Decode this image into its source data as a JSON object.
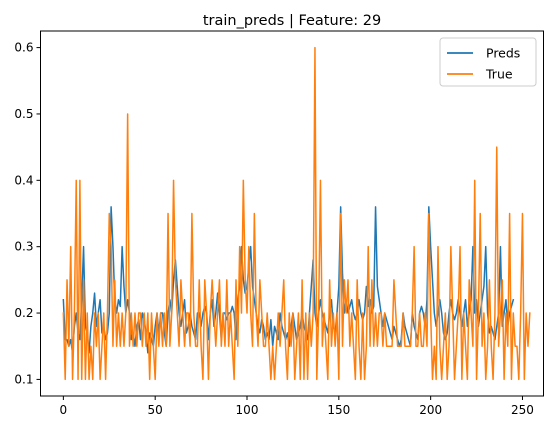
{
  "chart_data": {
    "type": "line",
    "title": "train_preds | Feature: 29",
    "xlabel": "",
    "ylabel": "",
    "xlim": [
      -12.45,
      261.45
    ],
    "ylim": [
      0.075,
      0.625
    ],
    "xticks": [
      0,
      50,
      100,
      150,
      200,
      250
    ],
    "yticks": [
      0.1,
      0.2,
      0.3,
      0.4,
      0.5,
      0.6
    ],
    "ytick_labels": [
      "0.1",
      "0.2",
      "0.3",
      "0.4",
      "0.5",
      "0.6"
    ],
    "grid": false,
    "legend": {
      "placement": "top-right"
    },
    "x_count": 250,
    "series": [
      {
        "name": "Preds",
        "color": "#1f77b4",
        "values": [
          0.22,
          0.16,
          0.16,
          0.15,
          0.16,
          0.14,
          0.18,
          0.2,
          0.17,
          0.16,
          0.22,
          0.3,
          0.18,
          0.17,
          0.14,
          0.18,
          0.2,
          0.23,
          0.18,
          0.2,
          0.22,
          0.17,
          0.18,
          0.16,
          0.17,
          0.2,
          0.36,
          0.3,
          0.22,
          0.2,
          0.22,
          0.21,
          0.3,
          0.24,
          0.2,
          0.22,
          0.2,
          0.16,
          0.17,
          0.15,
          0.18,
          0.19,
          0.16,
          0.2,
          0.19,
          0.17,
          0.14,
          0.17,
          0.16,
          0.15,
          0.18,
          0.2,
          0.17,
          0.2,
          0.2,
          0.17,
          0.15,
          0.2,
          0.22,
          0.2,
          0.25,
          0.28,
          0.24,
          0.2,
          0.18,
          0.2,
          0.22,
          0.17,
          0.18,
          0.2,
          0.18,
          0.17,
          0.16,
          0.2,
          0.2,
          0.18,
          0.2,
          0.21,
          0.2,
          0.16,
          0.2,
          0.22,
          0.18,
          0.2,
          0.23,
          0.2,
          0.16,
          0.2,
          0.2,
          0.19,
          0.2,
          0.2,
          0.21,
          0.2,
          0.16,
          0.22,
          0.24,
          0.3,
          0.25,
          0.23,
          0.24,
          0.27,
          0.3,
          0.24,
          0.22,
          0.2,
          0.18,
          0.17,
          0.19,
          0.18,
          0.16,
          0.17,
          0.16,
          0.19,
          0.15,
          0.18,
          0.17,
          0.16,
          0.2,
          0.18,
          0.17,
          0.16,
          0.17,
          0.15,
          0.18,
          0.2,
          0.18,
          0.16,
          0.17,
          0.18,
          0.2,
          0.18,
          0.17,
          0.16,
          0.2,
          0.24,
          0.28,
          0.2,
          0.18,
          0.2,
          0.22,
          0.2,
          0.19,
          0.18,
          0.17,
          0.2,
          0.22,
          0.18,
          0.17,
          0.2,
          0.24,
          0.36,
          0.26,
          0.2,
          0.22,
          0.2,
          0.21,
          0.22,
          0.2,
          0.19,
          0.2,
          0.22,
          0.2,
          0.19,
          0.2,
          0.24,
          0.21,
          0.22,
          0.2,
          0.21,
          0.36,
          0.24,
          0.22,
          0.2,
          0.18,
          0.2,
          0.19,
          0.18,
          0.17,
          0.16,
          0.18,
          0.17,
          0.16,
          0.15,
          0.16,
          0.2,
          0.18,
          0.17,
          0.16,
          0.15,
          0.2,
          0.18,
          0.17,
          0.16,
          0.2,
          0.21,
          0.2,
          0.18,
          0.22,
          0.36,
          0.3,
          0.25,
          0.2,
          0.18,
          0.2,
          0.22,
          0.2,
          0.17,
          0.16,
          0.17,
          0.2,
          0.22,
          0.2,
          0.19,
          0.2,
          0.22,
          0.2,
          0.18,
          0.2,
          0.22,
          0.18,
          0.2,
          0.22,
          0.3,
          0.2,
          0.22,
          0.18,
          0.2,
          0.22,
          0.24,
          0.3,
          0.2,
          0.17,
          0.18,
          0.17,
          0.16,
          0.18,
          0.2,
          0.3,
          0.18,
          0.2,
          0.22,
          0.18,
          0.2,
          0.21,
          0.22
        ]
      },
      {
        "name": "True",
        "color": "#ff7f0e",
        "values": [
          0.2,
          0.1,
          0.25,
          0.15,
          0.3,
          0.1,
          0.2,
          0.4,
          0.1,
          0.4,
          0.1,
          0.25,
          0.1,
          0.2,
          0.1,
          0.15,
          0.1,
          0.2,
          0.15,
          0.2,
          0.1,
          0.15,
          0.2,
          0.1,
          0.2,
          0.35,
          0.3,
          0.15,
          0.25,
          0.15,
          0.2,
          0.15,
          0.2,
          0.15,
          0.2,
          0.5,
          0.15,
          0.2,
          0.15,
          0.2,
          0.15,
          0.2,
          0.2,
          0.15,
          0.2,
          0.15,
          0.2,
          0.1,
          0.2,
          0.15,
          0.1,
          0.2,
          0.15,
          0.2,
          0.15,
          0.2,
          0.15,
          0.35,
          0.15,
          0.2,
          0.4,
          0.25,
          0.2,
          0.15,
          0.25,
          0.2,
          0.15,
          0.2,
          0.2,
          0.15,
          0.35,
          0.2,
          0.15,
          0.15,
          0.25,
          0.15,
          0.1,
          0.25,
          0.2,
          0.1,
          0.2,
          0.25,
          0.2,
          0.15,
          0.2,
          0.25,
          0.15,
          0.2,
          0.15,
          0.25,
          0.15,
          0.2,
          0.15,
          0.1,
          0.25,
          0.15,
          0.3,
          0.2,
          0.4,
          0.25,
          0.2,
          0.3,
          0.2,
          0.15,
          0.35,
          0.2,
          0.15,
          0.25,
          0.2,
          0.15,
          0.15,
          0.2,
          0.15,
          0.1,
          0.15,
          0.1,
          0.15,
          0.2,
          0.15,
          0.2,
          0.25,
          0.15,
          0.1,
          0.2,
          0.15,
          0.2,
          0.1,
          0.15,
          0.2,
          0.1,
          0.25,
          0.1,
          0.2,
          0.1,
          0.2,
          0.15,
          0.2,
          0.6,
          0.1,
          0.2,
          0.4,
          0.15,
          0.2,
          0.15,
          0.1,
          0.25,
          0.15,
          0.2,
          0.15,
          0.2,
          0.1,
          0.35,
          0.15,
          0.25,
          0.2,
          0.25,
          0.15,
          0.2,
          0.15,
          0.1,
          0.25,
          0.15,
          0.1,
          0.2,
          0.1,
          0.15,
          0.3,
          0.15,
          0.25,
          0.15,
          0.2,
          0.15,
          0.2,
          0.2,
          0.15,
          0.2,
          0.15,
          0.15,
          0.15,
          0.15,
          0.25,
          0.2,
          0.15,
          0.15,
          0.15,
          0.2,
          0.15,
          0.15,
          0.15,
          0.15,
          0.2,
          0.3,
          0.15,
          0.15,
          0.2,
          0.15,
          0.15,
          0.2,
          0.15,
          0.35,
          0.2,
          0.1,
          0.15,
          0.1,
          0.3,
          0.15,
          0.1,
          0.15,
          0.2,
          0.1,
          0.15,
          0.3,
          0.2,
          0.1,
          0.15,
          0.2,
          0.3,
          0.1,
          0.2,
          0.15,
          0.1,
          0.25,
          0.2,
          0.15,
          0.4,
          0.1,
          0.2,
          0.35,
          0.15,
          0.2,
          0.1,
          0.15,
          0.25,
          0.15,
          0.1,
          0.2,
          0.45,
          0.15,
          0.2,
          0.25,
          0.1,
          0.2,
          0.15,
          0.35,
          0.1,
          0.2,
          0.15,
          0.15,
          0.1,
          0.2,
          0.35,
          0.1,
          0.2,
          0.15,
          0.2
        ]
      }
    ]
  }
}
